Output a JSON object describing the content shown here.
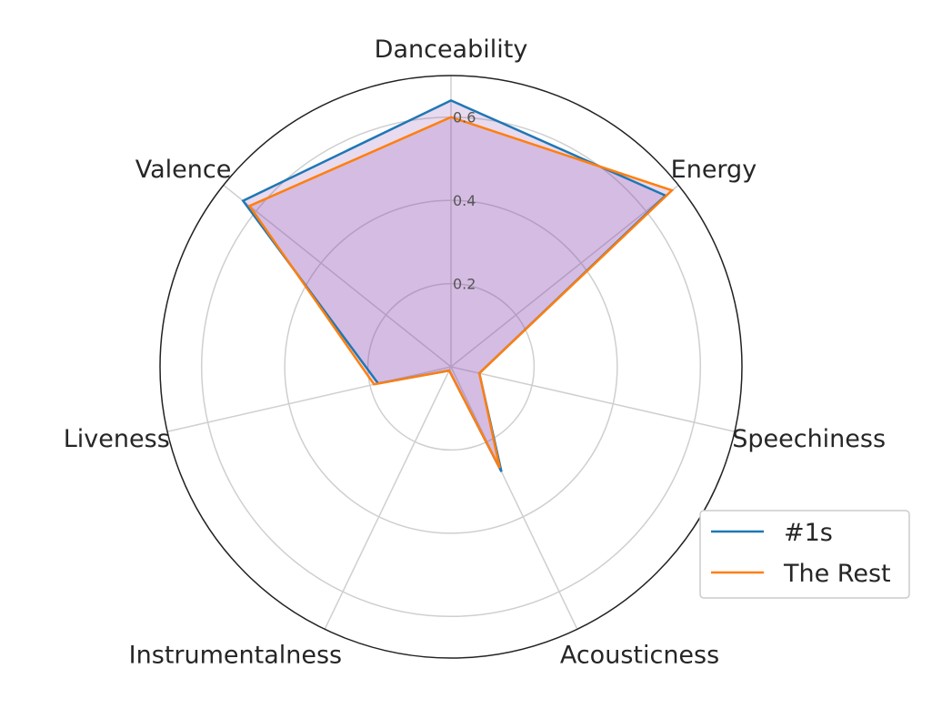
{
  "chart_data": {
    "type": "radar",
    "categories": [
      "Danceability",
      "Energy",
      "Speechiness",
      "Acousticness",
      "Instrumentalness",
      "Liveness",
      "Valence"
    ],
    "series": [
      {
        "name": "#1s",
        "values": [
          0.64,
          0.66,
          0.07,
          0.28,
          0.01,
          0.18,
          0.64
        ],
        "color": "#1f77b4"
      },
      {
        "name": "The Rest",
        "values": [
          0.6,
          0.68,
          0.07,
          0.27,
          0.01,
          0.19,
          0.62
        ],
        "color": "#ff7f0e"
      }
    ],
    "radial_ticks": [
      0.2,
      0.4,
      0.6
    ],
    "radial_tick_labels": [
      "0.2",
      "0.4",
      "0.6"
    ],
    "rlim": [
      0,
      0.7
    ],
    "grid": true,
    "legend_position": "lower-right",
    "fill_color": "#8e44ad"
  }
}
